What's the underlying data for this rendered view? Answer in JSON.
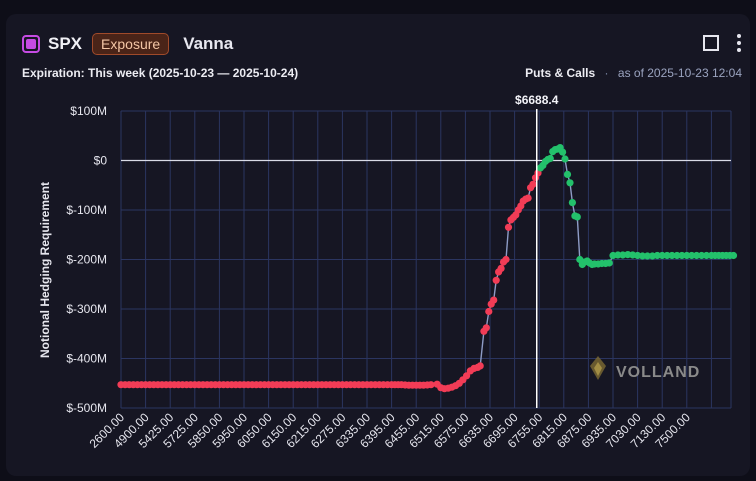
{
  "header": {
    "ticker": "SPX",
    "badge": "Exposure",
    "title": "Vanna",
    "expiration": "Expiration: This week (2025-10-23 — 2025-10-24)",
    "mode": "Puts & Calls",
    "separator": "·",
    "as_of": "as of 2025-10-23 12:04"
  },
  "watermark": "VOLLAND",
  "colors": {
    "negative": "#f23c56",
    "positive": "#23c16b",
    "line": "#8e9cc6",
    "grid": "#2b3560",
    "spot_line": "#ffffff"
  },
  "chart_data": {
    "type": "scatter",
    "title": "",
    "xlabel": "",
    "ylabel": "Notional Hedging Requirement",
    "x_is_categorical": true,
    "categories": [
      "2600.00",
      "4900.00",
      "5425.00",
      "5725.00",
      "5850.00",
      "5950.00",
      "6050.00",
      "6150.00",
      "6215.00",
      "6275.00",
      "6335.00",
      "6395.00",
      "6455.00",
      "6515.00",
      "6575.00",
      "6635.00",
      "6695.00",
      "6755.00",
      "6815.00",
      "6875.00",
      "6935.00",
      "7030.00",
      "7130.00",
      "7500.00"
    ],
    "y_ticks": [
      100,
      0,
      -100,
      -200,
      -300,
      -400,
      -500
    ],
    "y_tick_labels": [
      "$100M",
      "$0",
      "$-100M",
      "$-200M",
      "$-300M",
      "$-400M",
      "$-500M"
    ],
    "ylim": [
      -500,
      100
    ],
    "y_unit": "$M",
    "spot": {
      "label": "$6688.4",
      "category_position": 16.9
    },
    "legend": "none",
    "grid": true,
    "series": [
      {
        "points": [
          [
            0,
            -453
          ],
          [
            0.5,
            -453
          ],
          [
            1,
            -453
          ],
          [
            1.5,
            -453
          ],
          [
            2,
            -453
          ],
          [
            2.5,
            -453
          ],
          [
            3,
            -453
          ],
          [
            3.5,
            -453
          ],
          [
            4,
            -453
          ],
          [
            4.5,
            -453
          ],
          [
            5,
            -453
          ],
          [
            5.5,
            -453
          ],
          [
            6,
            -453
          ],
          [
            6.5,
            -453
          ],
          [
            7,
            -453
          ],
          [
            7.5,
            -453
          ],
          [
            8,
            -453
          ],
          [
            8.5,
            -453
          ],
          [
            9,
            -453
          ],
          [
            9.5,
            -453
          ],
          [
            10,
            -453
          ],
          [
            10.5,
            -453
          ],
          [
            11,
            -453
          ],
          [
            11.4,
            -453
          ],
          [
            11.7,
            -454
          ],
          [
            12,
            -454
          ],
          [
            12.3,
            -454
          ],
          [
            12.6,
            -453
          ],
          [
            12.85,
            -452
          ],
          [
            13.0,
            -459
          ],
          [
            13.15,
            -461
          ],
          [
            13.3,
            -460
          ],
          [
            13.45,
            -458
          ],
          [
            13.6,
            -455
          ],
          [
            13.75,
            -450
          ],
          [
            13.9,
            -443
          ],
          [
            14.05,
            -435
          ],
          [
            14.2,
            -425
          ],
          [
            14.35,
            -420
          ],
          [
            14.5,
            -418
          ],
          [
            14.6,
            -415
          ],
          [
            14.75,
            -345
          ],
          [
            14.85,
            -338
          ],
          [
            14.95,
            -305
          ],
          [
            15.05,
            -290
          ],
          [
            15.15,
            -282
          ],
          [
            15.25,
            -242
          ],
          [
            15.35,
            -225
          ],
          [
            15.45,
            -218
          ],
          [
            15.55,
            -205
          ],
          [
            15.65,
            -200
          ],
          [
            15.75,
            -135
          ],
          [
            15.85,
            -120
          ],
          [
            15.95,
            -115
          ],
          [
            16.05,
            -110
          ],
          [
            16.15,
            -100
          ],
          [
            16.25,
            -92
          ],
          [
            16.35,
            -82
          ],
          [
            16.45,
            -78
          ],
          [
            16.55,
            -76
          ],
          [
            16.65,
            -55
          ],
          [
            16.75,
            -48
          ],
          [
            16.85,
            -35
          ],
          [
            16.95,
            -25
          ],
          [
            17.05,
            -15
          ],
          [
            17.15,
            -10
          ],
          [
            17.25,
            -2
          ],
          [
            17.35,
            2
          ],
          [
            17.45,
            4
          ],
          [
            17.55,
            18
          ],
          [
            17.65,
            22
          ],
          [
            17.75,
            23
          ],
          [
            17.85,
            26
          ],
          [
            17.95,
            17
          ],
          [
            18.05,
            3
          ],
          [
            18.15,
            -28
          ],
          [
            18.25,
            -45
          ],
          [
            18.35,
            -85
          ],
          [
            18.45,
            -112
          ],
          [
            18.55,
            -114
          ],
          [
            18.65,
            -200
          ],
          [
            18.75,
            -210
          ],
          [
            18.85,
            -205
          ],
          [
            18.95,
            -203
          ],
          [
            19.05,
            -207
          ],
          [
            19.15,
            -210
          ],
          [
            19.25,
            -209
          ],
          [
            19.4,
            -209
          ],
          [
            19.55,
            -208
          ],
          [
            19.7,
            -208
          ],
          [
            19.85,
            -207
          ],
          [
            20,
            -192
          ],
          [
            20.2,
            -191
          ],
          [
            20.4,
            -191
          ],
          [
            20.6,
            -190
          ],
          [
            20.8,
            -191
          ],
          [
            21,
            -192
          ],
          [
            21.2,
            -193
          ],
          [
            21.4,
            -193
          ],
          [
            21.6,
            -193
          ],
          [
            21.8,
            -192
          ],
          [
            22,
            -192
          ],
          [
            22.2,
            -192
          ],
          [
            22.4,
            -192
          ],
          [
            22.6,
            -192
          ],
          [
            22.8,
            -192
          ],
          [
            23,
            -192
          ],
          [
            23.2,
            -192
          ],
          [
            23.4,
            -192
          ],
          [
            23.6,
            -192
          ],
          [
            23.8,
            -192
          ],
          [
            24,
            -192
          ],
          [
            24.3,
            -192
          ],
          [
            24.6,
            -192
          ],
          [
            24.9,
            -192
          ]
        ]
      }
    ]
  }
}
